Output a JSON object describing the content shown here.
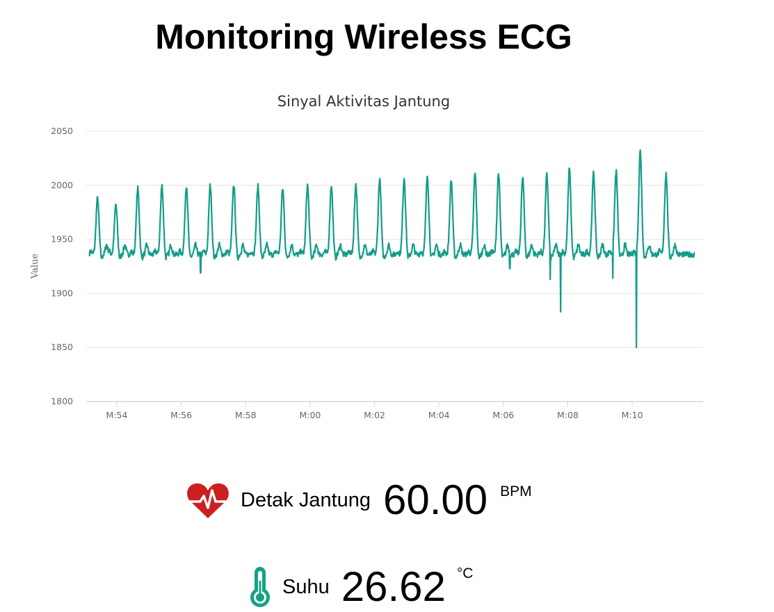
{
  "page": {
    "title": "Monitoring Wireless ECG"
  },
  "vitals": {
    "heart_rate": {
      "label": "Detak Jantung",
      "value": "60.00",
      "unit": "BPM",
      "icon": "heart-pulse-icon",
      "color": "#cc1f1f"
    },
    "temperature": {
      "label": "Suhu",
      "value": "26.62",
      "unit": "°C",
      "icon": "thermometer-icon",
      "color": "#13a384"
    }
  },
  "chart_data": {
    "type": "line",
    "title": "Sinyal Aktivitas Jantung",
    "xlabel": "",
    "ylabel": "Value",
    "ylim": [
      1800,
      2050
    ],
    "yticks": [
      1800,
      1850,
      1900,
      1950,
      2000,
      2050
    ],
    "xlim_minutes": [
      -6.95,
      12.2
    ],
    "xticks": [
      {
        "minute": -6,
        "label": "M:54"
      },
      {
        "minute": -4,
        "label": "M:56"
      },
      {
        "minute": -2,
        "label": "M:58"
      },
      {
        "minute": 0,
        "label": "M:00"
      },
      {
        "minute": 2,
        "label": "M:02"
      },
      {
        "minute": 4,
        "label": "M:04"
      },
      {
        "minute": 6,
        "label": "M:06"
      },
      {
        "minute": 8,
        "label": "M:08"
      },
      {
        "minute": 10,
        "label": "M:10"
      }
    ],
    "grid": true,
    "legend": false,
    "series_color": "#139c89",
    "baseline": 1936,
    "beats": [
      {
        "minute": -6.6,
        "peak": 1988
      },
      {
        "minute": -6.03,
        "peak": 1982
      },
      {
        "minute": -5.35,
        "peak": 1997
      },
      {
        "minute": -4.6,
        "peak": 2000
      },
      {
        "minute": -3.84,
        "peak": 2000
      },
      {
        "minute": -3.1,
        "peak": 2000
      },
      {
        "minute": -2.37,
        "peak": 2001
      },
      {
        "minute": -1.62,
        "peak": 1999
      },
      {
        "minute": -0.85,
        "peak": 1997
      },
      {
        "minute": -0.08,
        "peak": 2000
      },
      {
        "minute": 0.66,
        "peak": 2000
      },
      {
        "minute": 1.42,
        "peak": 2001
      },
      {
        "minute": 2.16,
        "peak": 2006
      },
      {
        "minute": 2.92,
        "peak": 2007
      },
      {
        "minute": 3.64,
        "peak": 2009
      },
      {
        "minute": 4.38,
        "peak": 2005
      },
      {
        "minute": 5.12,
        "peak": 2011
      },
      {
        "minute": 5.85,
        "peak": 2011
      },
      {
        "minute": 6.6,
        "peak": 2007
      },
      {
        "minute": 7.35,
        "peak": 2010
      },
      {
        "minute": 8.05,
        "peak": 2015
      },
      {
        "minute": 8.8,
        "peak": 2011
      },
      {
        "minute": 9.5,
        "peak": 2013
      },
      {
        "minute": 10.25,
        "peak": 2032
      },
      {
        "minute": 11.05,
        "peak": 2011
      }
    ],
    "dips": [
      {
        "minute": -3.4,
        "value": 1919
      },
      {
        "minute": 7.78,
        "value": 1883
      },
      {
        "minute": 7.45,
        "value": 1913
      },
      {
        "minute": 9.4,
        "value": 1914
      },
      {
        "minute": 10.13,
        "value": 1850
      },
      {
        "minute": 6.2,
        "value": 1923
      }
    ]
  }
}
